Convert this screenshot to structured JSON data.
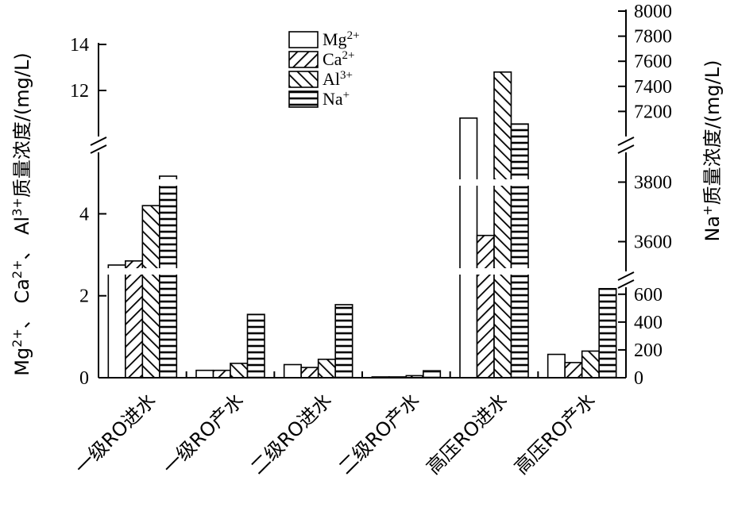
{
  "chart_data": {
    "type": "bar",
    "categories": [
      "一级RO进水",
      "一级RO产水",
      "二级RO进水",
      "二级RO产水",
      "高压RO进水",
      "高压RO产水"
    ],
    "series": [
      {
        "name": "Mg",
        "superscript": "2+",
        "axis": "left",
        "pattern": "none",
        "values": [
          2.75,
          0.18,
          0.32,
          0.02,
          10.8,
          0.57
        ]
      },
      {
        "name": "Ca",
        "superscript": "2+",
        "axis": "left",
        "pattern": "fwd",
        "values": [
          2.85,
          0.18,
          0.25,
          0.02,
          5.7,
          0.37
        ]
      },
      {
        "name": "Al",
        "superscript": "3+",
        "axis": "left",
        "pattern": "back",
        "values": [
          4.2,
          0.35,
          0.45,
          0.05,
          12.8,
          0.65
        ]
      },
      {
        "name": "Na",
        "superscript": "+",
        "axis": "right",
        "pattern": "horiz",
        "values": [
          3820,
          455,
          525,
          50,
          7100,
          640
        ]
      }
    ],
    "left_axis": {
      "label_parts": [
        "Mg",
        "2+",
        "、 Ca",
        "2+",
        "、 Al",
        "3+",
        "质量浓度/(mg/L)"
      ],
      "lower_range": [
        0,
        5.5
      ],
      "upper_range": [
        10,
        14
      ],
      "lower_ticks": [
        "0",
        "2",
        "4"
      ],
      "upper_ticks": [
        "12",
        "14"
      ]
    },
    "right_axis": {
      "label_parts": [
        "Na",
        "+",
        "质量浓度/(mg/L)"
      ],
      "lower_range": [
        0,
        650
      ],
      "mid_range": [
        3500,
        3900
      ],
      "upper_range": [
        7000,
        8000
      ],
      "lower_ticks": [
        "0",
        "200",
        "400",
        "600"
      ],
      "mid_ticks": [
        "3600",
        "3800"
      ],
      "upper_ticks": [
        "7200",
        "7400",
        "7600",
        "7800",
        "8000"
      ]
    },
    "legend_position": "top-center",
    "grid": false
  }
}
